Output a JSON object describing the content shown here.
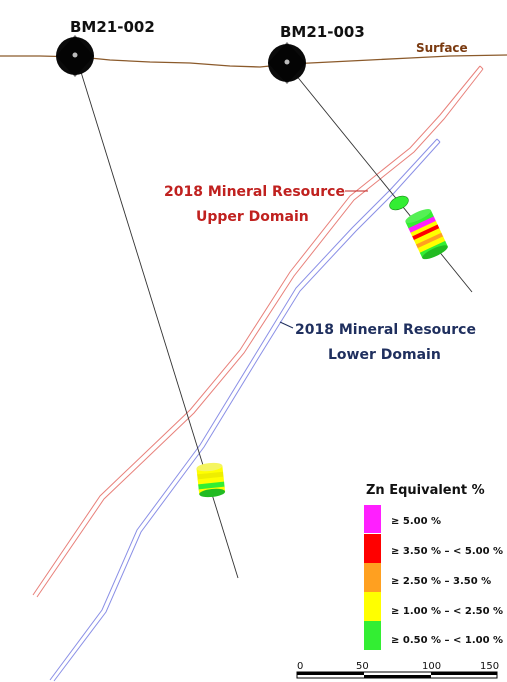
{
  "surface_label": "Surface",
  "drillholes": [
    {
      "name": "BM21-002"
    },
    {
      "name": "BM21-003"
    }
  ],
  "domains": {
    "upper": {
      "line1": "2018 Mineral Resource",
      "line2": "Upper Domain",
      "color": "#c0211f",
      "outline_color": "#e8807a"
    },
    "lower": {
      "line1": "2018 Mineral Resource",
      "line2": "Lower Domain",
      "color": "#1f2f5e",
      "outline_color": "#8a8fe6"
    }
  },
  "legend": {
    "title": "Zn Equivalent %",
    "items": [
      {
        "label": "≥ 5.00 %",
        "color": "#ff1fff"
      },
      {
        "label": "≥ 3.50 % – < 5.00 %",
        "color": "#ff0000"
      },
      {
        "label": "≥ 2.50 % – 3.50 %",
        "color": "#ffa020"
      },
      {
        "label": "≥ 1.00 % – < 2.50 %",
        "color": "#ffff00"
      },
      {
        "label": "≥ 0.50 % – < 1.00 %",
        "color": "#33ee33"
      }
    ]
  },
  "scale_bar": {
    "ticks": [
      "0",
      "50",
      "100",
      "150"
    ]
  }
}
